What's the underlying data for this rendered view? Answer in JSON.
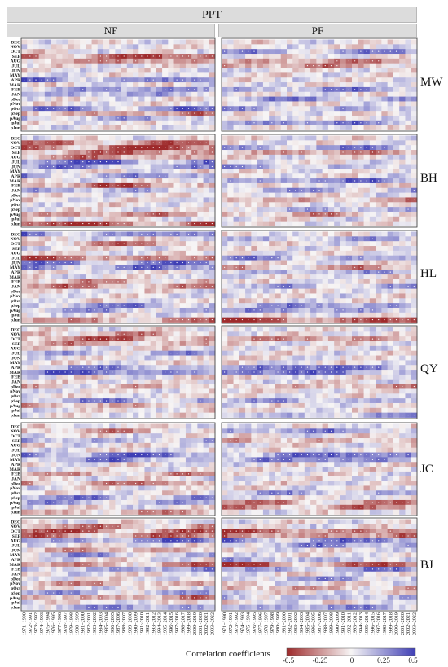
{
  "chart_data": {
    "type": "heatmap",
    "title": "PPT",
    "columns": [
      "NF",
      "PF"
    ],
    "sites": [
      "MW",
      "BH",
      "HL",
      "QY",
      "JC",
      "BJ"
    ],
    "months": [
      "DEC",
      "NOV",
      "OCT",
      "SEP",
      "AUG",
      "JUL",
      "JUN",
      "MAY",
      "APR",
      "MAR",
      "FEB",
      "JAN",
      "pDec",
      "pNov",
      "pOct",
      "pSep",
      "pAug",
      "pJul",
      "pJun"
    ],
    "windows": [
      "1971~1990",
      "1972~1991",
      "1973~1992",
      "1974~1993",
      "1975~1994",
      "1976~1995",
      "1977~1996",
      "1978~1997",
      "1979~1998",
      "1980~1999",
      "1981~2000",
      "1982~2001",
      "1983~2002",
      "1984~2003",
      "1985~2004",
      "1986~2005",
      "1987~2006",
      "1988~2007",
      "1989~2008",
      "1990~2009",
      "1991~2010",
      "1992~2011",
      "1993~2012",
      "1994~2013",
      "1995~2014",
      "1996~2015",
      "1997~2016",
      "1998~2017",
      "1999~2018",
      "2000~2019",
      "2001~2020",
      "2002~2021",
      "2003~2022"
    ],
    "colorbar": {
      "label": "Correlation coefficients",
      "range": [
        -0.5,
        0.5
      ],
      "ticks": [
        "-0.5",
        "-0.25",
        "0",
        "0.25",
        "0.5"
      ],
      "colors": {
        "negative": "#9e2a2b",
        "zero": "#f7f5f5",
        "positive": "#3f3fb5"
      }
    },
    "row_profiles": {
      "MW": {
        "NF": {
          "SEP": -0.3,
          "AUG": -0.2,
          "APR": 0.25,
          "FEB": 0.2,
          "JAN": 0.15,
          "pOct": 0.25,
          "pSep": -0.2,
          "pAug": 0.15
        },
        "PF": {
          "OCT": 0.2,
          "AUG": -0.2,
          "JUL": -0.2,
          "FEB": 0.2,
          "pDec": 0.2,
          "pOct": 0.15,
          "pJul": 0.25
        }
      },
      "BH": {
        "NF": {
          "NOV": -0.25,
          "OCT": -0.35,
          "SEP": -0.25,
          "AUG": -0.2,
          "JUL": 0.3,
          "JUN": 0.2,
          "APR": 0.2,
          "FEB": -0.25,
          "JAN": 0.15,
          "pAug": -0.2,
          "pJun": -0.35
        },
        "PF": {
          "OCT": 0.2,
          "SEP": -0.2,
          "JUN": 0.15,
          "MAR": 0.25,
          "JAN": 0.15,
          "pNov": -0.15,
          "pSep": 0.15,
          "pAug": -0.15
        }
      },
      "HL": {
        "NF": {
          "DEC": 0.25,
          "OCT": -0.2,
          "JUL": -0.3,
          "JUN": 0.25,
          "MAY": 0.25,
          "FEB": -0.15,
          "JAN": -0.2,
          "pSep": 0.2,
          "pAug": 0.15,
          "pJun": -0.2
        },
        "PF": {
          "NOV": 0.15,
          "JUL": 0.2,
          "MAY": -0.15,
          "APR": 0.15,
          "JAN": 0.15,
          "pSep": 0.2,
          "pAug": 0.2,
          "pJun": -0.35
        }
      },
      "QY": {
        "NF": {
          "NOV": -0.15,
          "OCT": -0.25,
          "SEP": -0.15,
          "JUL": 0.15,
          "APR": 0.2,
          "MAR": 0.3,
          "pDec": -0.1,
          "pSep": 0.2,
          "pAug": -0.15
        },
        "PF": {
          "OCT": -0.2,
          "APR": 0.3,
          "MAR": 0.3,
          "pDec": -0.15,
          "pSep": 0.15,
          "pJun": 0.15
        }
      },
      "JC": {
        "NF": {
          "NOV": -0.15,
          "SEP": 0.15,
          "JUN": 0.3,
          "MAY": 0.2,
          "FEB": -0.15,
          "pDec": -0.2,
          "pSep": 0.2,
          "pAug": 0.15,
          "pJun": -0.15
        },
        "PF": {
          "NOV": 0.2,
          "SEP": -0.15,
          "JUN": 0.3,
          "MAY": 0.25,
          "pOct": 0.15,
          "pAug": -0.2,
          "pJul": -0.2
        }
      },
      "BJ": {
        "NF": {
          "NOV": -0.2,
          "OCT": -0.3,
          "SEP": -0.25,
          "AUG": 0.25,
          "JUN": -0.15,
          "MAY": 0.15,
          "MAR": -0.2,
          "FEB": 0.2,
          "pNov": -0.15,
          "pSep": 0.15,
          "pAug": -0.2,
          "pJun": 0.2
        },
        "PF": {
          "OCT": -0.3,
          "SEP": -0.25,
          "AUG": 0.25,
          "JUL": 0.2,
          "APR": 0.15,
          "MAR": -0.3,
          "FEB": 0.2,
          "pDec": 0.15,
          "pOct": -0.15,
          "pAug": 0.15,
          "pJun": 0.2
        }
      }
    }
  }
}
